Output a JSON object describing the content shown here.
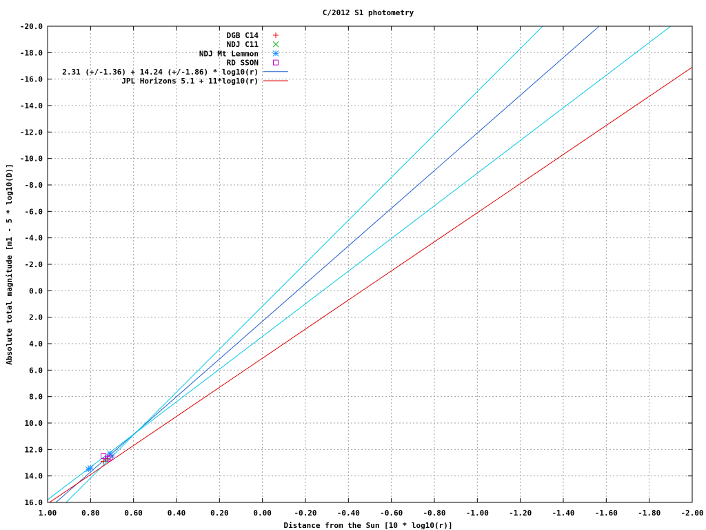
{
  "chart_data": {
    "type": "line",
    "title": "C/2012 S1 photometry",
    "xlabel": "Distance from the Sun [10 * log10(r)]",
    "ylabel": "Absolute total magnitude [m1 - 5 * log10(D)]",
    "xlim": [
      1.0,
      -2.0
    ],
    "ylim": [
      16.0,
      -20.0
    ],
    "x_ticks": [
      "1.00",
      "0.80",
      "0.60",
      "0.40",
      "0.20",
      "0.00",
      "-0.20",
      "-0.40",
      "-0.60",
      "-0.80",
      "-1.00",
      "-1.20",
      "-1.40",
      "-1.60",
      "-1.80",
      "-2.00"
    ],
    "y_ticks": [
      "-20.0",
      "-18.0",
      "-16.0",
      "-14.0",
      "-12.0",
      "-10.0",
      "-8.0",
      "-6.0",
      "-4.0",
      "-2.0",
      "0.0",
      "2.0",
      "4.0",
      "6.0",
      "8.0",
      "10.0",
      "12.0",
      "14.0",
      "16.0"
    ],
    "grid": true,
    "legend_position": "top-right",
    "series": [
      {
        "name": "DGB C14",
        "kind": "points",
        "marker": "plus",
        "color": "#ff0000",
        "points": [
          [
            0.74,
            12.9
          ],
          [
            0.72,
            12.7
          ]
        ]
      },
      {
        "name": "NDJ C11",
        "kind": "points",
        "marker": "cross",
        "color": "#00aa00",
        "points": [
          [
            0.73,
            12.8
          ]
        ]
      },
      {
        "name": "NDJ Mt Lemmon",
        "kind": "points",
        "marker": "asterisk",
        "color": "#1e90ff",
        "points": [
          [
            0.8,
            13.4
          ],
          [
            0.81,
            13.5
          ],
          [
            0.71,
            12.3
          ],
          [
            0.7,
            12.5
          ]
        ]
      },
      {
        "name": "RD SSON",
        "kind": "points",
        "marker": "square",
        "color": "#cc00cc",
        "points": [
          [
            0.74,
            12.5
          ],
          [
            0.72,
            12.7
          ],
          [
            0.71,
            12.6
          ]
        ]
      },
      {
        "name": "2.31 (+/-1.36) + 14.24 (+/-1.86) * log10(r)",
        "kind": "line",
        "color": "#1f5fd0",
        "points": [
          [
            1.0,
            16.55
          ],
          [
            -2.0,
            -26.17
          ]
        ]
      },
      {
        "name": "",
        "kind": "line",
        "color": "#00c8e6",
        "points": [
          [
            1.0,
            17.4
          ],
          [
            -1.304,
            -20.0
          ]
        ]
      },
      {
        "name": "",
        "kind": "line",
        "color": "#00c8e6",
        "points": [
          [
            1.0,
            15.8
          ],
          [
            -1.9,
            -20.0
          ]
        ]
      },
      {
        "name": "JPL Horizons 5.1 + 11*log10(r)",
        "kind": "line",
        "color": "#dd0000",
        "points": [
          [
            1.0,
            16.1
          ],
          [
            -2.0,
            -16.9
          ]
        ]
      }
    ]
  }
}
